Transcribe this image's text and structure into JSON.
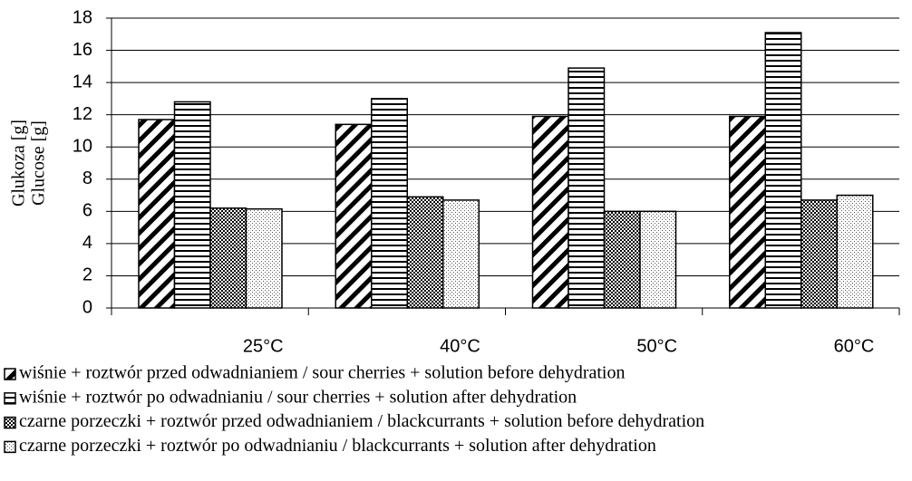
{
  "chart_data": {
    "type": "bar",
    "y_label_lines": [
      "Glukoza [g]",
      "Glucose [g]"
    ],
    "categories": [
      "25°C",
      "40°C",
      "50°C",
      "60°C"
    ],
    "series": [
      {
        "name": "wiśnie + roztwór przed odwadnianiem / sour cherries + solution before dehydration",
        "pattern": "diagonal",
        "values": [
          11.7,
          11.4,
          11.9,
          11.9
        ]
      },
      {
        "name": "wiśnie + roztwór po odwadnianiu / sour cherries + solution after dehydration",
        "pattern": "horizontal",
        "values": [
          12.8,
          13.0,
          14.9,
          17.1
        ]
      },
      {
        "name": "czarne porzeczki + roztwór przed odwadnianiem / blackcurrants + solution before dehydration",
        "pattern": "checker",
        "values": [
          6.2,
          6.9,
          6.0,
          6.7
        ]
      },
      {
        "name": "czarne porzeczki + roztwór po odwadnianiu / blackcurrants + solution after dehydration",
        "pattern": "dots",
        "values": [
          6.15,
          6.7,
          6.0,
          7.0
        ]
      }
    ],
    "ylim": [
      0,
      18
    ],
    "yticks": [
      0,
      2,
      4,
      6,
      8,
      10,
      12,
      14,
      16,
      18
    ],
    "grid": true
  }
}
